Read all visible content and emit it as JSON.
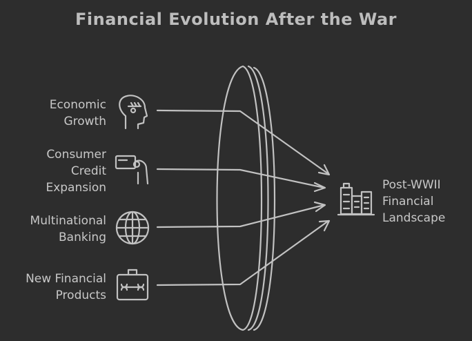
{
  "title": "Financial Evolution After the War",
  "inputs": [
    {
      "id": "growth",
      "lines": [
        "Economic",
        "Growth"
      ],
      "icon": "head-brain-icon"
    },
    {
      "id": "credit",
      "lines": [
        "Consumer",
        "Credit",
        "Expansion"
      ],
      "icon": "hand-card-icon"
    },
    {
      "id": "banking",
      "lines": [
        "Multinational",
        "Banking"
      ],
      "icon": "globe-icon"
    },
    {
      "id": "products",
      "lines": [
        "New Financial",
        "Products"
      ],
      "icon": "toolbox-icon"
    }
  ],
  "output": {
    "lines": [
      "Post-WWII",
      "Financial",
      "Landscape"
    ],
    "icon": "city-buildings-icon"
  },
  "colors": {
    "background": "#2d2d2d",
    "stroke": "#c2c2c2",
    "text": "#c8c8c8"
  }
}
